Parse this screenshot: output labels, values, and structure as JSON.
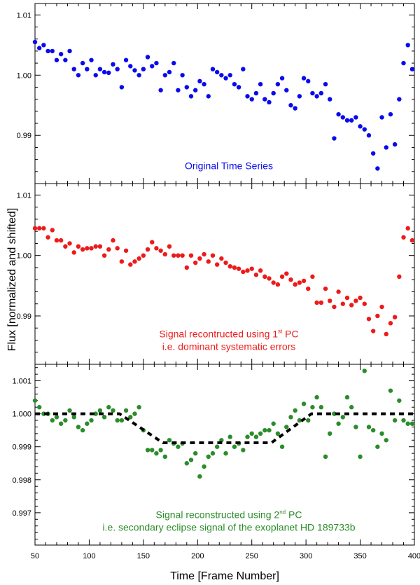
{
  "colors": {
    "blue": "#0a0aee",
    "red": "#ee1a1a",
    "green": "#2a8c2a",
    "model": "#000000"
  },
  "chart_data": [
    {
      "type": "scatter",
      "annotation": {
        "prefix": "Original Time Series",
        "sup": "",
        "suffix": "",
        "line2": ""
      },
      "ylim": [
        0.982,
        1.0119
      ],
      "yticks": [
        0.99,
        1.0,
        1.01
      ],
      "ytick_labels": [
        "0.99",
        "1.00",
        "1.01"
      ],
      "yminor": 0.002,
      "series": [
        {
          "color": "blue",
          "values": [
            1.0055,
            1.0045,
            1.005,
            1.004,
            1.004,
            1.0025,
            1.0035,
            1.0025,
            1.004,
            1.001,
            1.0,
            1.002,
            1.001,
            1.0025,
            1.0,
            1.001,
            1.0005,
            1.0004,
            1.0018,
            1.001,
            0.998,
            1.0025,
            1.0015,
            1.0008,
            1.0,
            1.001,
            1.003,
            1.0015,
            1.002,
            0.9975,
            1.0,
            1.0005,
            1.002,
            0.9975,
            1.0,
            0.998,
            0.9965,
            0.9975,
            0.999,
            0.9985,
            0.9965,
            1.001,
            1.0005,
            1.0,
            0.9995,
            1.0,
            0.9985,
            0.998,
            1.001,
            0.9965,
            0.996,
            0.997,
            0.9985,
            0.996,
            0.9955,
            0.997,
            0.9985,
            0.9995,
            0.9975,
            0.995,
            0.9945,
            0.9965,
            0.9995,
            0.999,
            0.997,
            0.9965,
            0.997,
            0.9985,
            0.996,
            0.9895,
            0.9935,
            0.993,
            0.9925,
            0.9925,
            0.993,
            0.9915,
            0.991,
            0.99,
            0.987,
            0.9845,
            0.993,
            0.988,
            0.9935,
            0.9885,
            0.996,
            1.002,
            1.005,
            1.001
          ]
        }
      ]
    },
    {
      "type": "scatter",
      "annotation": {
        "prefix": "Signal recontructed using 1",
        "sup": "st",
        "suffix": " PC",
        "line2": "i.e. dominant systematic errors"
      },
      "ylim": [
        0.982,
        1.0119
      ],
      "yticks": [
        0.99,
        1.0,
        1.01
      ],
      "ytick_labels": [
        "0.99",
        "1.00",
        "1.01"
      ],
      "yminor": 0.002,
      "series": [
        {
          "color": "red",
          "values": [
            1.0045,
            1.0045,
            1.0045,
            1.003,
            1.0042,
            1.0025,
            1.0025,
            1.0015,
            1.002,
            1.0005,
            1.0015,
            1.001,
            1.0012,
            1.0012,
            1.0015,
            1.0015,
            1.0,
            1.001,
            1.0025,
            1.0012,
            0.999,
            1.0008,
            0.9985,
            0.999,
            0.9995,
            1.0,
            1.001,
            1.0022,
            1.0012,
            1.0008,
            1.0002,
            1.0015,
            1.0,
            1.0,
            1.0,
            0.998,
            1.0,
            0.9988,
            0.9995,
            1.0002,
            0.999,
            1.0,
            0.9985,
            0.9995,
            0.9988,
            0.9982,
            0.998,
            0.9978,
            0.9973,
            0.9975,
            0.9978,
            0.9968,
            0.9975,
            0.9965,
            0.9962,
            0.9955,
            0.9952,
            0.9965,
            0.997,
            0.996,
            0.9952,
            0.9955,
            0.9958,
            0.9945,
            0.9965,
            0.9922,
            0.9922,
            0.9945,
            0.9925,
            0.9915,
            0.994,
            0.992,
            0.993,
            0.9918,
            0.9925,
            0.993,
            0.992,
            0.9895,
            0.9875,
            0.99,
            0.9915,
            0.987,
            0.9888,
            0.9898,
            0.9965,
            1.003,
            1.0045,
            1.0025
          ]
        }
      ]
    },
    {
      "type": "scatter",
      "annotation": {
        "prefix": "Signal reconstructed using 2",
        "sup": "nd",
        "suffix": " PC",
        "line2": "i.e. secondary eclipse signal of the exoplanet HD 189733b"
      },
      "ylim": [
        0.99602,
        1.0015
      ],
      "yticks": [
        0.997,
        0.998,
        0.999,
        1.0,
        1.001
      ],
      "ytick_labels": [
        "0.997",
        "0.998",
        "0.999",
        "1.000",
        "1.001"
      ],
      "yminor": 0.0002,
      "series": [
        {
          "color": "green",
          "values": [
            1.0004,
            1.0002,
            1.0,
            1.0,
            0.9998,
            0.9999,
            0.9997,
            0.9998,
            1.0001,
            0.9999,
            0.9996,
            0.9995,
            0.9997,
            0.9998,
            1.0,
            1.0001,
            0.9999,
            1.0002,
            1.0001,
            0.9998,
            0.9998,
            1.0001,
            0.9999,
            1.0,
            1.0002,
            0.9995,
            0.9989,
            0.9989,
            0.9988,
            0.9989,
            0.9987,
            0.9992,
            0.9991,
            0.999,
            0.9991,
            0.9985,
            0.9986,
            0.9988,
            0.9981,
            0.9984,
            0.9987,
            0.9988,
            0.999,
            0.9992,
            0.9988,
            0.9993,
            0.999,
            0.9991,
            0.9989,
            0.9993,
            0.9994,
            0.9993,
            0.9994,
            0.9995,
            0.9995,
            0.9997,
            0.9994,
            0.999,
            0.9996,
            0.9999,
            1.0001,
            0.9998,
            1.0003,
            0.9998,
            1.0002,
            1.0005,
            1.0002,
            0.9987,
            0.9994,
            1.0,
            0.9997,
            0.9999,
            1.0005,
            1.0002,
            0.9996,
            0.9987,
            1.0013,
            0.9996,
            0.9995,
            0.999,
            0.9994,
            0.9992,
            1.0007,
            0.9998,
            1.0004,
            0.9998,
            0.9997,
            0.9997
          ]
        },
        {
          "color": "model",
          "style": "dashed-line",
          "x": [
            50,
            128,
            168,
            268,
            305,
            400
          ],
          "values": [
            1.0,
            1.0,
            0.99912,
            0.99912,
            1.0,
            1.0
          ]
        }
      ]
    }
  ],
  "shared_x": {
    "x": [
      50,
      54,
      58,
      62,
      66,
      70,
      74,
      78,
      82,
      86,
      90,
      94,
      98,
      102,
      106,
      110,
      114,
      118,
      122,
      126,
      130,
      134,
      138,
      142,
      146,
      150,
      154,
      158,
      162,
      166,
      170,
      174,
      178,
      182,
      186,
      190,
      194,
      198,
      202,
      206,
      210,
      214,
      218,
      222,
      226,
      230,
      234,
      238,
      242,
      246,
      250,
      254,
      258,
      262,
      266,
      270,
      274,
      278,
      282,
      286,
      290,
      294,
      298,
      302,
      306,
      310,
      314,
      318,
      322,
      326,
      330,
      334,
      338,
      342,
      346,
      350,
      354,
      358,
      362,
      366,
      370,
      374,
      378,
      382,
      386,
      390,
      394,
      398
    ],
    "xlim": [
      50,
      400
    ],
    "xticks": [
      "50",
      "100",
      "150",
      "200",
      "250",
      "300",
      "350",
      "400"
    ],
    "xlabel": "Time [Frame Number]",
    "ylabel": "Flux [normalized and shifted]"
  }
}
